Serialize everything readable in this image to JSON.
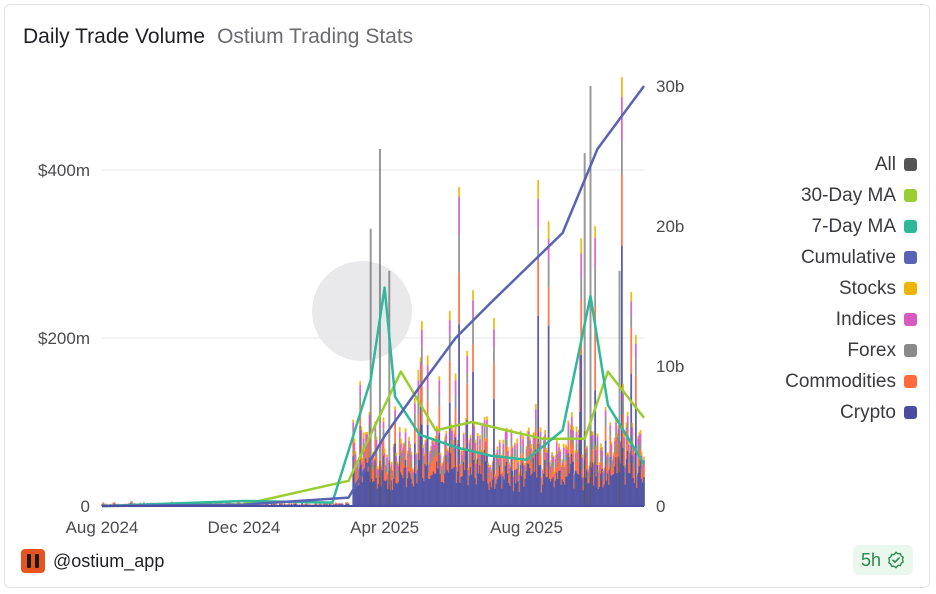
{
  "header": {
    "title": "Daily Trade Volume",
    "subtitle": "Ostium Trading Stats"
  },
  "footer": {
    "handle": "@ostium_app",
    "badge": "5h"
  },
  "colors": {
    "all": "#555555",
    "ma30": "#9acd32",
    "ma7": "#2fb89a",
    "cumulative": "#5763b3",
    "stocks": "#f0b400",
    "indices": "#d85ac0",
    "forex": "#8a8a8a",
    "commodities": "#ff6a3d",
    "crypto": "#4b4ea0",
    "watermark": "#e9e9ec"
  },
  "chart_data": {
    "type": "bar",
    "title": "Daily Trade Volume",
    "x_ticks": [
      "Aug 2024",
      "Dec 2024",
      "Apr 2025",
      "Aug 2025"
    ],
    "y_left_ticks": [
      "0",
      "$200m",
      "$400m"
    ],
    "y_left_values": [
      0,
      200,
      400
    ],
    "y_left_range_m": [
      0,
      500
    ],
    "y_right_ticks": [
      "0",
      "10b",
      "20b",
      "30b"
    ],
    "y_right_values": [
      0,
      10,
      20,
      30
    ],
    "y_right_range_b": [
      0,
      30
    ],
    "x_range": [
      "2024-08-01",
      "2025-11-10"
    ],
    "grid": true,
    "legend_position": "right",
    "legend": [
      "All",
      "30-Day MA",
      "7-Day MA",
      "Cumulative",
      "Stocks",
      "Indices",
      "Forex",
      "Commodities",
      "Crypto"
    ],
    "series": [
      {
        "name": "All",
        "x": [
          "2025-03-20",
          "2025-03-28",
          "2025-04-05",
          "2025-09-20",
          "2025-09-25",
          "2025-10-20"
        ],
        "values": [
          330,
          425,
          280,
          420,
          500,
          280
        ]
      },
      {
        "name": "Cumulative",
        "x": [
          "2024-08-01",
          "2024-12-01",
          "2025-03-01",
          "2025-04-01",
          "2025-05-01",
          "2025-06-01",
          "2025-07-01",
          "2025-08-01",
          "2025-09-01",
          "2025-10-01",
          "2025-11-10"
        ],
        "values": [
          0,
          0.1,
          0.6,
          5.0,
          8.5,
          12.0,
          14.5,
          17.0,
          19.5,
          25.5,
          30.0
        ]
      },
      {
        "name": "7-Day MA",
        "x": [
          "2024-08-01",
          "2024-12-01",
          "2025-02-15",
          "2025-03-20",
          "2025-04-01",
          "2025-04-10",
          "2025-05-01",
          "2025-06-01",
          "2025-07-01",
          "2025-08-01",
          "2025-09-01",
          "2025-09-25",
          "2025-10-10",
          "2025-11-10"
        ],
        "values": [
          0,
          6,
          4,
          150,
          260,
          130,
          85,
          70,
          60,
          55,
          90,
          250,
          120,
          50
        ]
      },
      {
        "name": "30-Day MA",
        "x": [
          "2024-08-01",
          "2024-12-01",
          "2025-03-01",
          "2025-04-15",
          "2025-05-15",
          "2025-06-15",
          "2025-07-15",
          "2025-08-15",
          "2025-09-20",
          "2025-10-10",
          "2025-11-10"
        ],
        "values": [
          0,
          2,
          30,
          160,
          90,
          100,
          90,
          80,
          80,
          160,
          105
        ]
      }
    ]
  }
}
